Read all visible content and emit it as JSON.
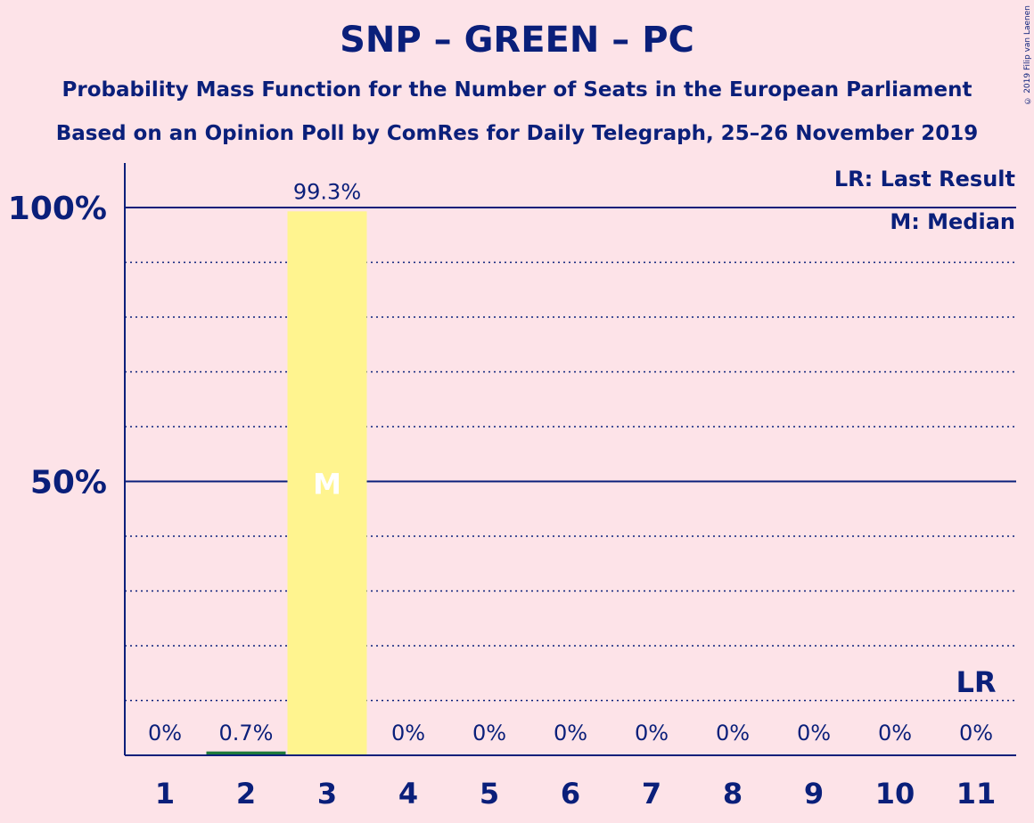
{
  "title": "SNP – GREEN – PC",
  "subtitle1": "Probability Mass Function for the Number of Seats in the European Parliament",
  "subtitle2": "Based on an Opinion Poll by ComRes for Daily Telegraph, 25–26 November 2019",
  "copyright": "© 2019 Filip van Laenen",
  "legend": {
    "lr": "LR: Last Result",
    "m": "M: Median"
  },
  "colors": {
    "background": "#fde3e8",
    "text": "#0a1f7a",
    "median_bar": "#fff48f",
    "other_bar": "#1f7a3a"
  },
  "chart_data": {
    "type": "bar",
    "categories": [
      "1",
      "2",
      "3",
      "4",
      "5",
      "6",
      "7",
      "8",
      "9",
      "10",
      "11"
    ],
    "values": [
      0,
      0.7,
      99.3,
      0,
      0,
      0,
      0,
      0,
      0,
      0,
      0
    ],
    "value_labels": [
      "0%",
      "0.7%",
      "99.3%",
      "0%",
      "0%",
      "0%",
      "0%",
      "0%",
      "0%",
      "0%",
      "0%"
    ],
    "ylim": [
      0,
      100
    ],
    "yticks": [
      {
        "value": 50,
        "label": "50%"
      },
      {
        "value": 100,
        "label": "100%"
      }
    ],
    "grid_minor_step": 10,
    "median_category": "3",
    "median_label": "M",
    "last_result_category": "11",
    "last_result_label": "LR",
    "grid": true,
    "legend_position": "top-right"
  }
}
